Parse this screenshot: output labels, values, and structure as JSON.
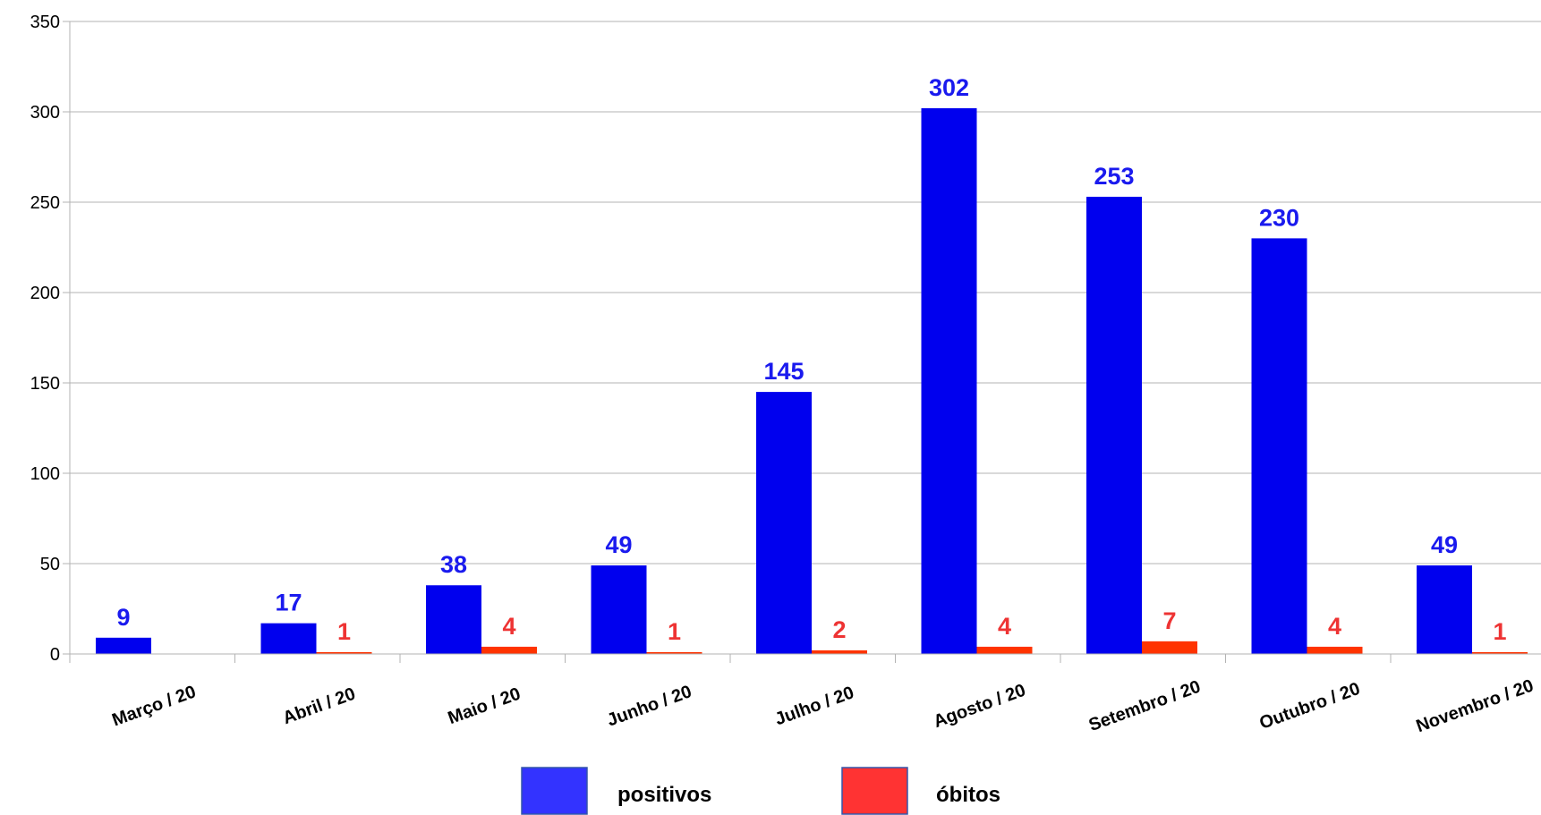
{
  "chart_data": {
    "type": "bar",
    "categories": [
      "Março / 20",
      "Abril / 20",
      "Maio / 20",
      "Junho / 20",
      "Julho / 20",
      "Agosto / 20",
      "Setembro / 20",
      "Outubro / 20",
      "Novembro / 20"
    ],
    "series": [
      {
        "name": "positivos",
        "values": [
          9,
          17,
          38,
          49,
          145,
          302,
          253,
          230,
          49
        ],
        "color": "#0000ee",
        "label_color": "#1a1aee",
        "legend_color": "#3333ff"
      },
      {
        "name": "óbitos",
        "values": [
          null,
          1,
          4,
          1,
          2,
          4,
          7,
          4,
          1
        ],
        "color": "#ff3300",
        "label_color": "#ee3333",
        "legend_color": "#ff3333"
      }
    ],
    "yticks": [
      0,
      50,
      100,
      150,
      200,
      250,
      300,
      350
    ],
    "ylim": [
      0,
      350
    ],
    "grid": true,
    "legend_position": "bottom"
  }
}
